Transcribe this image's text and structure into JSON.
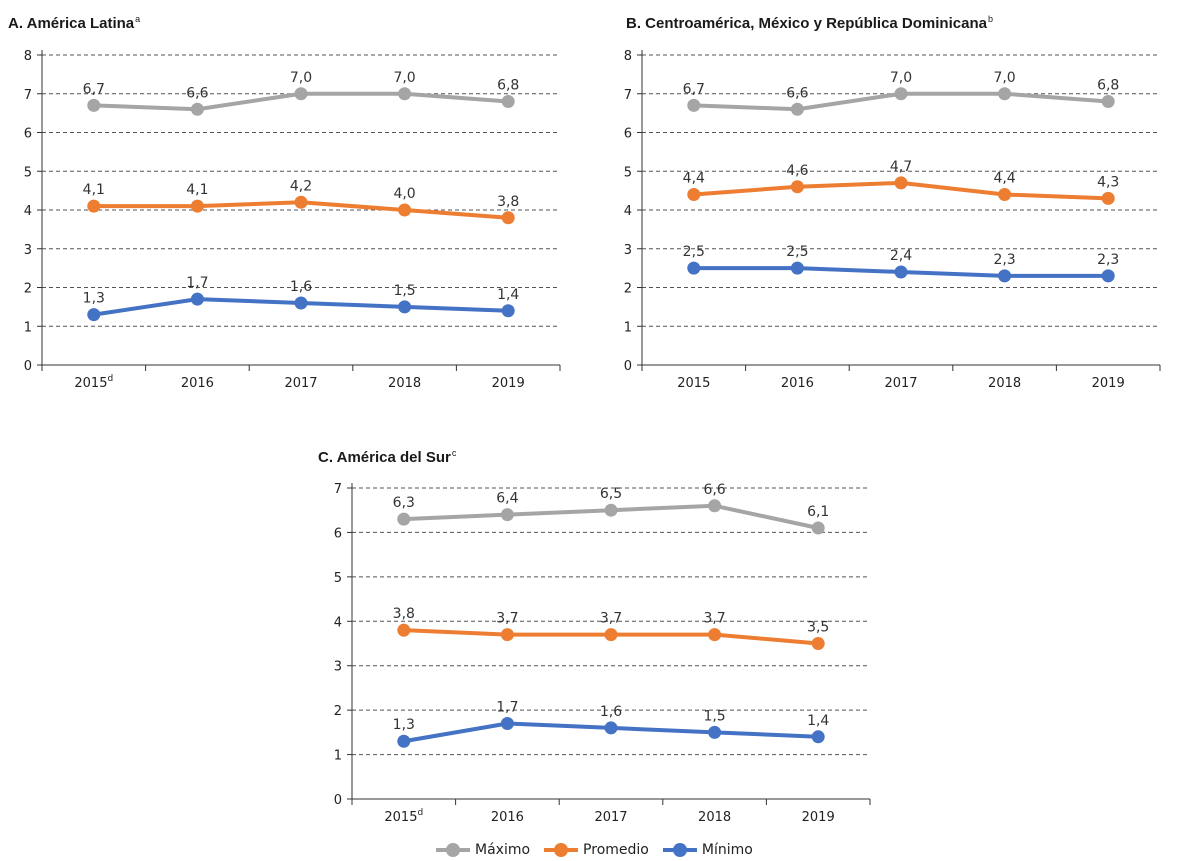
{
  "colors": {
    "max": "#a5a5a5",
    "avg": "#ed7d31",
    "min": "#4472c4"
  },
  "legend": {
    "max": "Máximo",
    "avg": "Promedio",
    "min": "Mínimo"
  },
  "chart_data": [
    {
      "type": "line",
      "title": "A. América Latina",
      "title_sup": "a",
      "categories": [
        "2015",
        "2016",
        "2017",
        "2018",
        "2019"
      ],
      "category_sups": [
        "d",
        "",
        "",
        "",
        ""
      ],
      "ylim": [
        0,
        8
      ],
      "yticks": [
        "0",
        "1",
        "2",
        "3",
        "4",
        "5",
        "6",
        "7",
        "8"
      ],
      "grid": true,
      "series": [
        {
          "name": "Máximo",
          "values": [
            6.7,
            6.6,
            7.0,
            7.0,
            6.8
          ],
          "labels": [
            "6,7",
            "6,6",
            "7,0",
            "7,0",
            "6,8"
          ]
        },
        {
          "name": "Promedio",
          "values": [
            4.1,
            4.1,
            4.2,
            4.0,
            3.8
          ],
          "labels": [
            "4,1",
            "4,1",
            "4,2",
            "4,0",
            "3,8"
          ]
        },
        {
          "name": "Mínimo",
          "values": [
            1.3,
            1.7,
            1.6,
            1.5,
            1.4
          ],
          "labels": [
            "1,3",
            "1,7",
            "1,6",
            "1,5",
            "1,4"
          ]
        }
      ]
    },
    {
      "type": "line",
      "title": "B. Centroamérica, México y República Dominicana",
      "title_sup": "b",
      "categories": [
        "2015",
        "2016",
        "2017",
        "2018",
        "2019"
      ],
      "category_sups": [
        "",
        "",
        "",
        "",
        ""
      ],
      "ylim": [
        0,
        8
      ],
      "yticks": [
        "0",
        "1",
        "2",
        "3",
        "4",
        "5",
        "6",
        "7",
        "8"
      ],
      "grid": true,
      "series": [
        {
          "name": "Máximo",
          "values": [
            6.7,
            6.6,
            7.0,
            7.0,
            6.8
          ],
          "labels": [
            "6,7",
            "6,6",
            "7,0",
            "7,0",
            "6,8"
          ]
        },
        {
          "name": "Promedio",
          "values": [
            4.4,
            4.6,
            4.7,
            4.4,
            4.3
          ],
          "labels": [
            "4,4",
            "4,6",
            "4,7",
            "4,4",
            "4,3"
          ]
        },
        {
          "name": "Mínimo",
          "values": [
            2.5,
            2.5,
            2.4,
            2.3,
            2.3
          ],
          "labels": [
            "2,5",
            "2,5",
            "2,4",
            "2,3",
            "2,3"
          ]
        }
      ]
    },
    {
      "type": "line",
      "title": "C. América del Sur",
      "title_sup": "c",
      "categories": [
        "2015",
        "2016",
        "2017",
        "2018",
        "2019"
      ],
      "category_sups": [
        "d",
        "",
        "",
        "",
        ""
      ],
      "ylim": [
        0,
        7
      ],
      "yticks": [
        "0",
        "1",
        "2",
        "3",
        "4",
        "5",
        "6",
        "7"
      ],
      "grid": true,
      "series": [
        {
          "name": "Máximo",
          "values": [
            6.3,
            6.4,
            6.5,
            6.6,
            6.1
          ],
          "labels": [
            "6,3",
            "6,4",
            "6,5",
            "6,6",
            "6,1"
          ]
        },
        {
          "name": "Promedio",
          "values": [
            3.8,
            3.7,
            3.7,
            3.7,
            3.5
          ],
          "labels": [
            "3,8",
            "3,7",
            "3,7",
            "3,7",
            "3,5"
          ]
        },
        {
          "name": "Mínimo",
          "values": [
            1.3,
            1.7,
            1.6,
            1.5,
            1.4
          ],
          "labels": [
            "1,3",
            "1,7",
            "1,6",
            "1,5",
            "1,4"
          ]
        }
      ]
    }
  ]
}
